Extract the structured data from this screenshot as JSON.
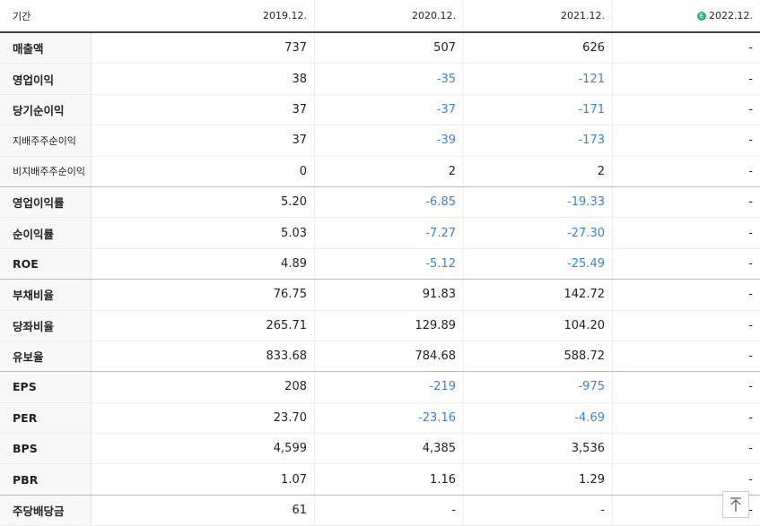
{
  "table": {
    "header": {
      "label": "기간",
      "columns": [
        "2019.12.",
        "2020.12.",
        "2021.12.",
        "2022.12."
      ],
      "estimate_badge": "E"
    },
    "rows": [
      {
        "label": "매출액",
        "values": [
          "737",
          "507",
          "626",
          "-"
        ]
      },
      {
        "label": "영업이익",
        "values": [
          "38",
          "-35",
          "-121",
          "-"
        ]
      },
      {
        "label": "당기순이익",
        "values": [
          "37",
          "-37",
          "-171",
          "-"
        ]
      },
      {
        "label": "지배주주순이익",
        "values": [
          "37",
          "-39",
          "-173",
          "-"
        ]
      },
      {
        "label": "비지배주주순이익",
        "values": [
          "0",
          "2",
          "2",
          "-"
        ]
      },
      {
        "label": "영업이익률",
        "values": [
          "5.20",
          "-6.85",
          "-19.33",
          "-"
        ]
      },
      {
        "label": "순이익률",
        "values": [
          "5.03",
          "-7.27",
          "-27.30",
          "-"
        ]
      },
      {
        "label": "ROE",
        "values": [
          "4.89",
          "-5.12",
          "-25.49",
          "-"
        ]
      },
      {
        "label": "부채비율",
        "values": [
          "76.75",
          "91.83",
          "142.72",
          "-"
        ]
      },
      {
        "label": "당좌비율",
        "values": [
          "265.71",
          "129.89",
          "104.20",
          "-"
        ]
      },
      {
        "label": "유보율",
        "values": [
          "833.68",
          "784.68",
          "588.72",
          "-"
        ]
      },
      {
        "label": "EPS",
        "values": [
          "208",
          "-219",
          "-975",
          "-"
        ]
      },
      {
        "label": "PER",
        "values": [
          "23.70",
          "-23.16",
          "-4.69",
          "-"
        ]
      },
      {
        "label": "BPS",
        "values": [
          "4,599",
          "4,385",
          "3,536",
          "-"
        ]
      },
      {
        "label": "PBR",
        "values": [
          "1.07",
          "1.16",
          "1.29",
          "-"
        ]
      },
      {
        "label": "주당배당금",
        "values": [
          "61",
          "-",
          "-",
          "-"
        ]
      }
    ]
  }
}
